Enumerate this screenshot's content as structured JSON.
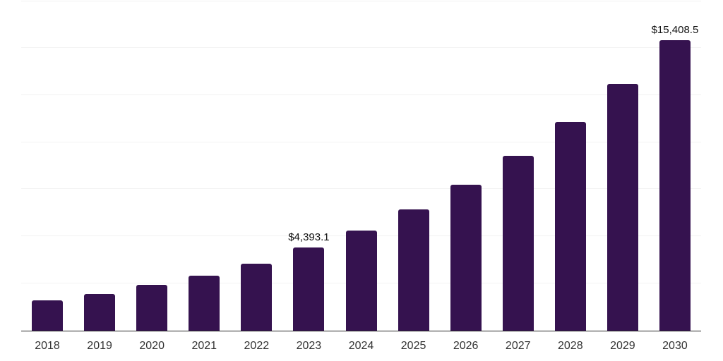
{
  "chart_data": {
    "type": "bar",
    "title": "",
    "xlabel": "",
    "ylabel": "",
    "categories": [
      "2018",
      "2019",
      "2020",
      "2021",
      "2022",
      "2023",
      "2024",
      "2025",
      "2026",
      "2027",
      "2028",
      "2029",
      "2030"
    ],
    "series": [
      {
        "name": "value",
        "values": [
          1575,
          1940,
          2400,
          2920,
          3560,
          4393.1,
          5300,
          6435,
          7745,
          9290,
          11080,
          13115,
          15408.5
        ]
      }
    ],
    "data_labels": {
      "2023": "$4,393.1",
      "2030": "$15,408.5"
    },
    "ylim": [
      0,
      17500
    ],
    "gridline_step": 2500,
    "grid": true,
    "legend": false,
    "y_axis_ticks_visible": false,
    "colors": {
      "background": "#ffffff",
      "bar": "#35124f",
      "grid": "#f2f2f2",
      "axis": "#262626",
      "tick_label": "#333333",
      "data_label": "#111111"
    }
  }
}
